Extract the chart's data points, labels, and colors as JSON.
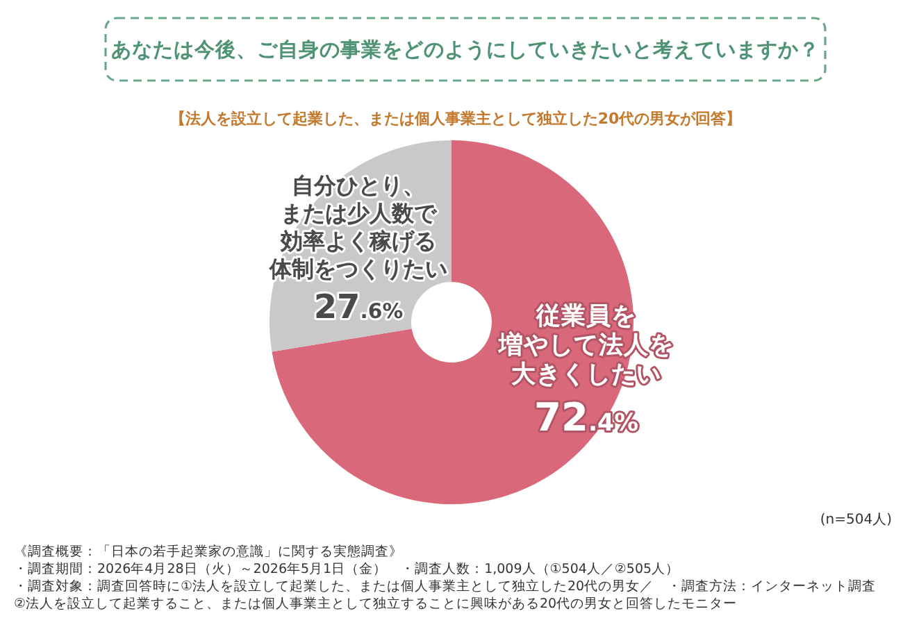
{
  "chart_data": {
    "type": "donut",
    "title": "あなたは今後、ご自身の事業をどのようにしていきたいと考えていますか？",
    "subtitle": "【法人を設立して起業した、または個人事業主として独立した20代の男女が回答】",
    "categories": [
      "従業員を増やして法人を大きくしたい",
      "自分ひとり、または少人数で効率よく稼げる体制をつくりたい"
    ],
    "values": [
      72.4,
      27.6
    ],
    "colors": [
      "#d9687b",
      "#c9c9c9"
    ],
    "value_labels": [
      "72.4%",
      "27.6%"
    ],
    "annotations": [
      "(n=504人)",
      "《調査概要：「日本の若手起業家の意識」に関する実態調査》",
      "・調査期間：2026年4月28日（火）～2026年5月1日（金）　・調査人数：1,009人（①504人／②505人）",
      "・調査対象：調査回答時に①法人を設立して起業した、または個人事業主として独立した20代の男女／　・調査方法：インターネット調査",
      "②法人を設立して起業すること、または個人事業主として独立することに興味がある20代の男女と回答したモニター"
    ]
  }
}
